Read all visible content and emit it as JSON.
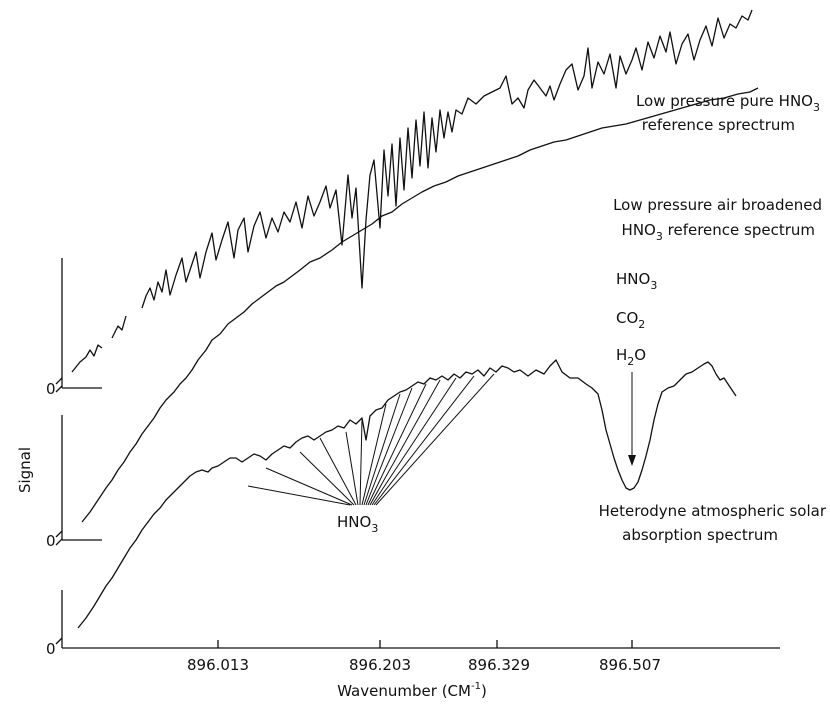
{
  "chart_data": {
    "type": "line",
    "xlabel": "Wavenumber",
    "xlabel_unit": "CM",
    "xlabel_unit_exp": "-1",
    "ylabel": "Signal",
    "x_ticks": [
      "896.013",
      "896.203",
      "896.329",
      "896.507"
    ],
    "zero_labels": [
      "0",
      "0",
      "0"
    ],
    "series": [
      {
        "line1": "Low pressure pure HNO",
        "sub": "3",
        "line2": "reference sprectrum"
      },
      {
        "line1": "Low pressure air broadened",
        "line2a": "HNO",
        "sub": "3",
        "line2b": " reference spectrum"
      },
      {
        "line1": "Heterodyne atmospheric solar",
        "line2": "absorption spectrum"
      }
    ],
    "annotations": {
      "hno3": {
        "text": "HNO",
        "sub": "3"
      },
      "species": [
        {
          "text": "HNO",
          "sub": "3"
        },
        {
          "text": "CO",
          "sub": "2"
        },
        {
          "text": "H",
          "sub": "2",
          "rest": "O"
        }
      ]
    },
    "grid": false
  }
}
